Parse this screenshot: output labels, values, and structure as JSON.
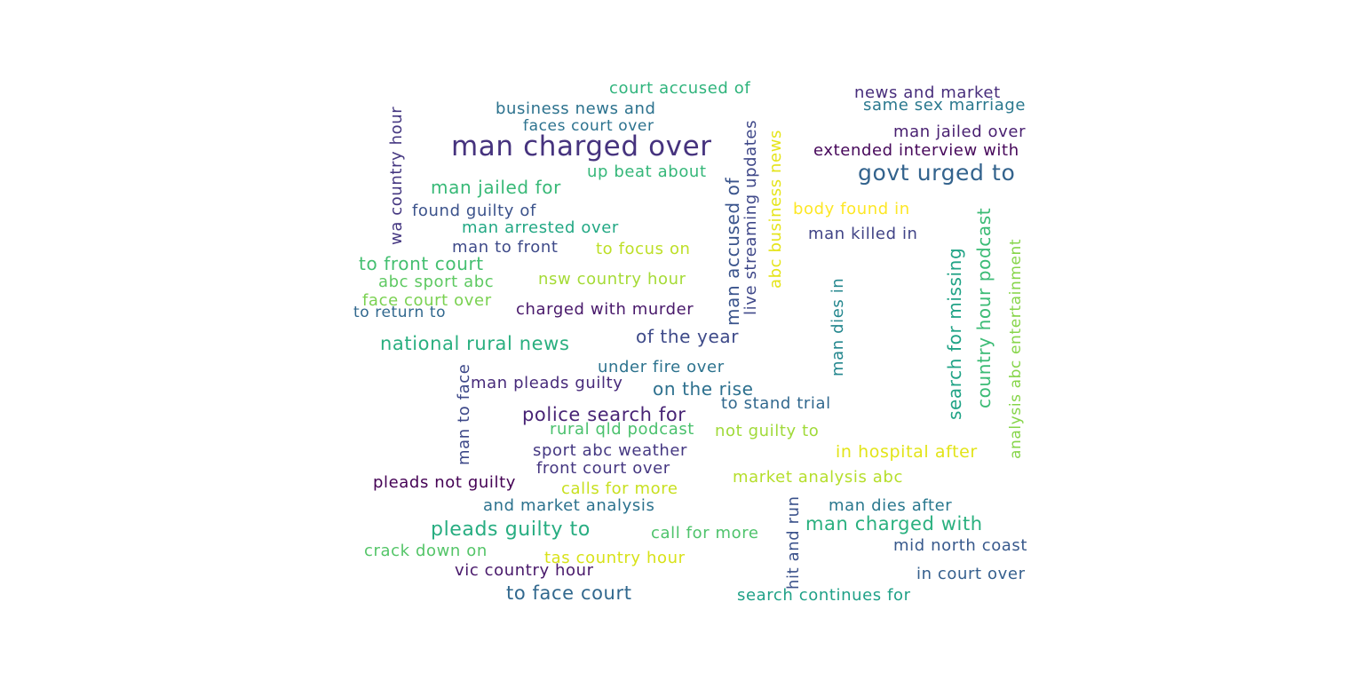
{
  "word_cloud": {
    "words": [
      {
        "text": "man charged over",
        "color": "#46337e"
      },
      {
        "text": "govt urged to",
        "color": "#33638d"
      },
      {
        "text": "court accused of",
        "color": "#2fb47c"
      },
      {
        "text": "news and market",
        "color": "#472d7b"
      },
      {
        "text": "same sex marriage",
        "color": "#2a788e"
      },
      {
        "text": "business news and",
        "color": "#2c728e"
      },
      {
        "text": "faces court over",
        "color": "#2c728e"
      },
      {
        "text": "man jailed over",
        "color": "#481f70"
      },
      {
        "text": "extended interview with",
        "color": "#46075a"
      },
      {
        "text": "up beat about",
        "color": "#35b779"
      },
      {
        "text": "man jailed for",
        "color": "#38b977"
      },
      {
        "text": "found guilty of",
        "color": "#3b528b"
      },
      {
        "text": "body found in",
        "color": "#fde725"
      },
      {
        "text": "man arrested over",
        "color": "#22a884"
      },
      {
        "text": "man killed in",
        "color": "#414487"
      },
      {
        "text": "man to front",
        "color": "#3e4a89"
      },
      {
        "text": "to focus on",
        "color": "#bddf26"
      },
      {
        "text": "to front court",
        "color": "#44bf70"
      },
      {
        "text": "abc sport abc",
        "color": "#5ec962"
      },
      {
        "text": "nsw country hour",
        "color": "#a5db36"
      },
      {
        "text": "face court over",
        "color": "#7ad151"
      },
      {
        "text": "to return to",
        "color": "#31688e"
      },
      {
        "text": "charged with murder",
        "color": "#48186a"
      },
      {
        "text": "national rural news",
        "color": "#29af7f"
      },
      {
        "text": "of the year",
        "color": "#3e4a89"
      },
      {
        "text": "under fire over",
        "color": "#2c728e"
      },
      {
        "text": "man pleads guilty",
        "color": "#472a7a"
      },
      {
        "text": "on the rise",
        "color": "#2d708e"
      },
      {
        "text": "to stand trial",
        "color": "#31688e"
      },
      {
        "text": "police search for",
        "color": "#482475"
      },
      {
        "text": "rural qld podcast",
        "color": "#4ac16d"
      },
      {
        "text": "not guilty to",
        "color": "#a0da39"
      },
      {
        "text": "sport abc weather",
        "color": "#453882"
      },
      {
        "text": "in hospital after",
        "color": "#e2e418"
      },
      {
        "text": "front court over",
        "color": "#453781"
      },
      {
        "text": "market analysis abc",
        "color": "#b5de2b"
      },
      {
        "text": "pleads not guilty",
        "color": "#440154"
      },
      {
        "text": "calls for more",
        "color": "#c8e020"
      },
      {
        "text": "and market analysis",
        "color": "#2c728e"
      },
      {
        "text": "man dies after",
        "color": "#2a788e"
      },
      {
        "text": "man charged with",
        "color": "#2ab07f"
      },
      {
        "text": "pleads guilty to",
        "color": "#27ad81"
      },
      {
        "text": "call for more",
        "color": "#4ec36b"
      },
      {
        "text": "mid north coast",
        "color": "#38598c"
      },
      {
        "text": "crack down on",
        "color": "#54c568"
      },
      {
        "text": "tas country hour",
        "color": "#d8e219"
      },
      {
        "text": "vic country hour",
        "color": "#48186a"
      },
      {
        "text": "in court over",
        "color": "#355f8d"
      },
      {
        "text": "to face court",
        "color": "#31688e"
      },
      {
        "text": "search continues for",
        "color": "#1fa187"
      },
      {
        "text": "wa country hour",
        "color": "#453781"
      },
      {
        "text": "man accused of",
        "color": "#3a548c"
      },
      {
        "text": "live streaming updates",
        "color": "#3f4889"
      },
      {
        "text": "abc business news",
        "color": "#e5e419"
      },
      {
        "text": "man dies in",
        "color": "#24878e"
      },
      {
        "text": "search for missing",
        "color": "#20a386"
      },
      {
        "text": "country hour podcast",
        "color": "#3bbb75"
      },
      {
        "text": "analysis abc entertainment",
        "color": "#86d549"
      },
      {
        "text": "man to face",
        "color": "#3e4989"
      },
      {
        "text": "hit and run",
        "color": "#3b528b"
      }
    ]
  }
}
